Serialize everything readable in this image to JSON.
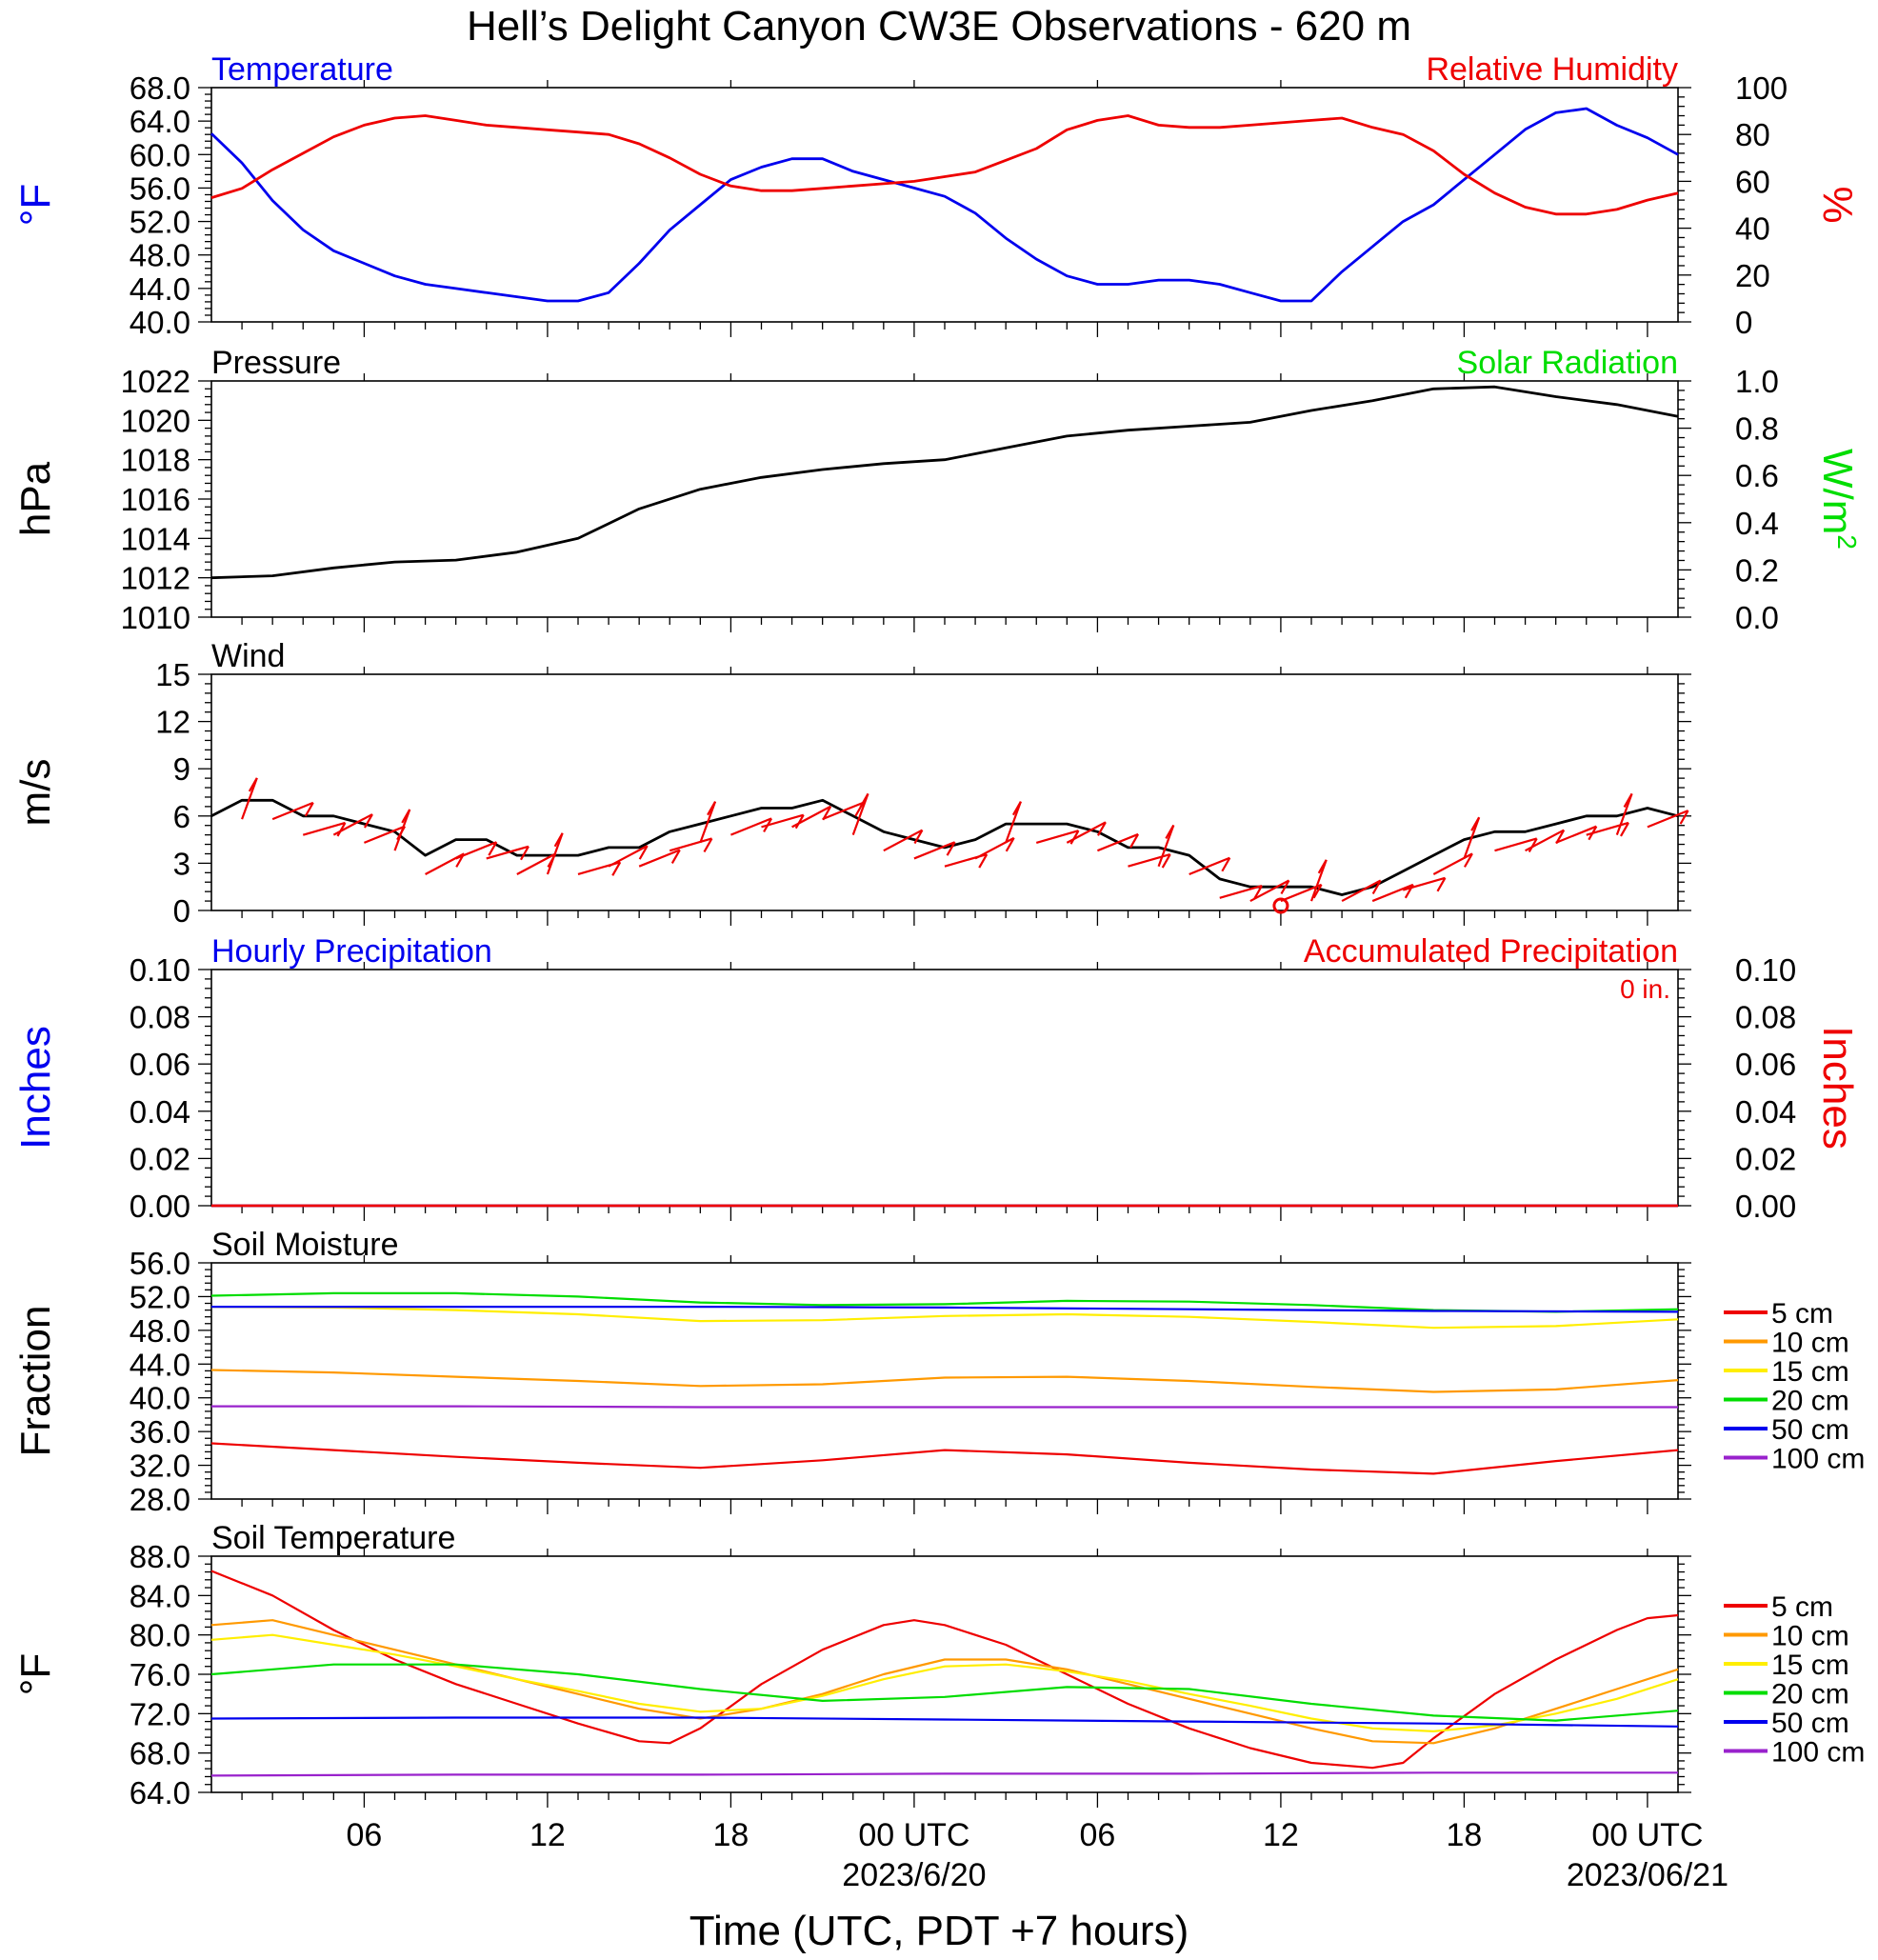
{
  "title": "Hell’s Delight Canyon CW3E Observations - 620 m",
  "xaxis": {
    "label": "Time (UTC, PDT +7 hours)",
    "ticks": [
      {
        "hour": 6,
        "label": "06"
      },
      {
        "hour": 12,
        "label": "12"
      },
      {
        "hour": 18,
        "label": "18"
      },
      {
        "hour": 24,
        "label": "00 UTC"
      },
      {
        "hour": 30,
        "label": "06"
      },
      {
        "hour": 36,
        "label": "12"
      },
      {
        "hour": 42,
        "label": "18"
      },
      {
        "hour": 48,
        "label": "00 UTC"
      }
    ],
    "dates": [
      {
        "hour": 24,
        "label": "2023/6/20"
      },
      {
        "hour": 48,
        "label": "2023/06/21"
      }
    ],
    "hour_range": [
      1,
      49
    ]
  },
  "colors": {
    "blue": "#0000ee",
    "red": "#ee0000",
    "green": "#00dd00",
    "orange": "#ff9900",
    "yellow": "#ffee00",
    "purple": "#9922cc",
    "black": "#000000"
  },
  "chart_data": [
    {
      "id": "temp_rh",
      "type": "line",
      "title_left": "Temperature",
      "title_right": "Relative Humidity",
      "ylabel_left": "°F",
      "ylabel_right": "%",
      "ylim_left": [
        40,
        68
      ],
      "ylim_right": [
        0,
        100
      ],
      "yticks_left": [
        "40.0",
        "44.0",
        "48.0",
        "52.0",
        "56.0",
        "60.0",
        "64.0",
        "68.0"
      ],
      "yticks_right": [
        "0",
        "20",
        "40",
        "60",
        "80",
        "100"
      ],
      "series": [
        {
          "name": "Temperature",
          "axis": "left",
          "color": "blue",
          "x": [
            1,
            2,
            3,
            4,
            5,
            6,
            7,
            8,
            9,
            10,
            11,
            12,
            13,
            14,
            15,
            16,
            17,
            18,
            19,
            20,
            21,
            22,
            23,
            24,
            25,
            26,
            27,
            28,
            29,
            30,
            31,
            32,
            33,
            34,
            35,
            36,
            37,
            38,
            39,
            40,
            41,
            42,
            43,
            44,
            45,
            46,
            47,
            48,
            49
          ],
          "y": [
            62.5,
            59,
            54.5,
            51,
            48.5,
            47,
            45.5,
            44.5,
            44,
            43.5,
            43,
            42.5,
            42.5,
            43.5,
            47,
            51,
            54,
            57,
            58.5,
            59.5,
            59.5,
            58,
            57,
            56,
            55,
            53,
            50,
            47.5,
            45.5,
            44.5,
            44.5,
            45,
            45,
            44.5,
            43.5,
            42.5,
            42.5,
            46,
            49,
            52,
            54,
            57,
            60,
            63,
            65,
            65.5,
            63.5,
            62,
            60
          ]
        },
        {
          "name": "Relative Humidity",
          "axis": "right",
          "color": "red",
          "x": [
            1,
            2,
            3,
            4,
            5,
            6,
            7,
            8,
            9,
            10,
            11,
            12,
            13,
            14,
            15,
            16,
            17,
            18,
            19,
            20,
            21,
            22,
            23,
            24,
            25,
            26,
            27,
            28,
            29,
            30,
            31,
            32,
            33,
            34,
            35,
            36,
            37,
            38,
            39,
            40,
            41,
            42,
            43,
            44,
            45,
            46,
            47,
            48,
            49
          ],
          "y": [
            53,
            57,
            65,
            72,
            79,
            84,
            87,
            88,
            86,
            84,
            83,
            82,
            81,
            80,
            76,
            70,
            63,
            58,
            56,
            56,
            57,
            58,
            59,
            60,
            62,
            64,
            69,
            74,
            82,
            86,
            88,
            84,
            83,
            83,
            84,
            85,
            86,
            87,
            83,
            80,
            73,
            63,
            55,
            49,
            46,
            46,
            48,
            52,
            55
          ]
        }
      ]
    },
    {
      "id": "pressure",
      "type": "line",
      "title_left": "Pressure",
      "title_right": "Solar Radiation",
      "ylabel_left": "hPa",
      "ylabel_right": "W/m",
      "ylabel_right_sup": "2",
      "ylim_left": [
        1010,
        1022
      ],
      "ylim_right": [
        0,
        1
      ],
      "yticks_left": [
        "1010",
        "1012",
        "1014",
        "1016",
        "1018",
        "1020",
        "1022"
      ],
      "yticks_right": [
        "0.0",
        "0.2",
        "0.4",
        "0.6",
        "0.8",
        "1.0"
      ],
      "series": [
        {
          "name": "Pressure",
          "axis": "left",
          "color": "black",
          "x": [
            1,
            3,
            5,
            7,
            9,
            11,
            13,
            15,
            17,
            19,
            21,
            23,
            25,
            27,
            29,
            31,
            33,
            35,
            37,
            39,
            41,
            43,
            45,
            47,
            49
          ],
          "y": [
            1012.0,
            1012.1,
            1012.5,
            1012.8,
            1012.9,
            1013.3,
            1014.0,
            1015.5,
            1016.5,
            1017.1,
            1017.5,
            1017.8,
            1018.0,
            1018.6,
            1019.2,
            1019.5,
            1019.7,
            1019.9,
            1020.5,
            1021.0,
            1021.6,
            1021.7,
            1021.2,
            1020.8,
            1020.2
          ]
        }
      ]
    },
    {
      "id": "wind",
      "type": "line",
      "title_left": "Wind",
      "ylabel_left": "m/s",
      "ylim_left": [
        0,
        15
      ],
      "yticks_left": [
        "0",
        "3",
        "6",
        "9",
        "12",
        "15"
      ],
      "series": [
        {
          "name": "Wind",
          "axis": "left",
          "color": "black",
          "x": [
            1,
            2,
            3,
            4,
            5,
            6,
            7,
            8,
            9,
            10,
            11,
            12,
            13,
            14,
            15,
            16,
            17,
            18,
            19,
            20,
            21,
            22,
            23,
            24,
            25,
            26,
            27,
            28,
            29,
            30,
            31,
            32,
            33,
            34,
            35,
            36,
            37,
            38,
            39,
            40,
            41,
            42,
            43,
            44,
            45,
            46,
            47,
            48,
            49
          ],
          "y": [
            6,
            7,
            7,
            6,
            6,
            5.5,
            5,
            3.5,
            4.5,
            4.5,
            3.5,
            3.5,
            3.5,
            4,
            4,
            5,
            5.5,
            6,
            6.5,
            6.5,
            7,
            6,
            5,
            4.5,
            4,
            4.5,
            5.5,
            5.5,
            5.5,
            5,
            4,
            4,
            3.5,
            2,
            1.5,
            1.5,
            1.5,
            1,
            1.5,
            2.5,
            3.5,
            4.5,
            5,
            5,
            5.5,
            6,
            6,
            6.5,
            6
          ]
        }
      ],
      "barb_hours": [
        2,
        3,
        4,
        5,
        6,
        7,
        8,
        9,
        10,
        11,
        12,
        13,
        14,
        15,
        16,
        17,
        18,
        19,
        20,
        21,
        22,
        23,
        24,
        25,
        26,
        27,
        28,
        29,
        30,
        31,
        32,
        33,
        34,
        35,
        36,
        37,
        38,
        39,
        40,
        41,
        42,
        43,
        44,
        45,
        46,
        47,
        48
      ],
      "calm_marker_hour": 36
    },
    {
      "id": "precip",
      "type": "line",
      "title_left": "Hourly Precipitation",
      "title_right": "Accumulated Precipitation",
      "accum_text": "0 in.",
      "ylabel_left": "Inches",
      "ylabel_right": "Inches",
      "ylim_left": [
        0,
        0.1
      ],
      "ylim_right": [
        0,
        0.1
      ],
      "yticks_left": [
        "0.00",
        "0.02",
        "0.04",
        "0.06",
        "0.08",
        "0.10"
      ],
      "yticks_right": [
        "0.00",
        "0.02",
        "0.04",
        "0.06",
        "0.08",
        "0.10"
      ],
      "series": [
        {
          "name": "Hourly Precipitation",
          "axis": "left",
          "color": "blue",
          "x": [
            1,
            49
          ],
          "y": [
            0,
            0
          ]
        },
        {
          "name": "Accumulated Precipitation",
          "axis": "right",
          "color": "red",
          "x": [
            1,
            49
          ],
          "y": [
            0,
            0
          ]
        }
      ]
    },
    {
      "id": "soil_moisture",
      "type": "line",
      "title_left": "Soil Moisture",
      "ylabel_left": "Fraction",
      "ylim_left": [
        28,
        56
      ],
      "yticks_left": [
        "28.0",
        "32.0",
        "36.0",
        "40.0",
        "44.0",
        "48.0",
        "52.0",
        "56.0"
      ],
      "legend": [
        "5 cm",
        "10 cm",
        "15 cm",
        "20 cm",
        "50 cm",
        "100 cm"
      ],
      "series": [
        {
          "name": "5 cm",
          "axis": "left",
          "color": "red",
          "x": [
            1,
            5,
            9,
            13,
            17,
            21,
            25,
            29,
            33,
            37,
            41,
            45,
            49
          ],
          "y": [
            34.6,
            33.8,
            33,
            32.3,
            31.7,
            32.6,
            33.8,
            33.3,
            32.3,
            31.5,
            31,
            32.5,
            33.8
          ]
        },
        {
          "name": "10 cm",
          "axis": "left",
          "color": "orange",
          "x": [
            1,
            5,
            9,
            13,
            17,
            21,
            25,
            29,
            33,
            37,
            41,
            45,
            49
          ],
          "y": [
            43.3,
            43,
            42.5,
            42,
            41.4,
            41.6,
            42.4,
            42.5,
            42.0,
            41.3,
            40.7,
            41,
            42.1
          ]
        },
        {
          "name": "15 cm",
          "axis": "left",
          "color": "yellow",
          "x": [
            1,
            5,
            9,
            13,
            17,
            21,
            25,
            29,
            33,
            37,
            41,
            45,
            49
          ],
          "y": [
            50.8,
            50.7,
            50.4,
            49.9,
            49.1,
            49.2,
            49.7,
            49.9,
            49.6,
            49.0,
            48.3,
            48.5,
            49.3
          ]
        },
        {
          "name": "20 cm",
          "axis": "left",
          "color": "green",
          "x": [
            1,
            5,
            9,
            13,
            17,
            21,
            25,
            29,
            33,
            37,
            41,
            45,
            49
          ],
          "y": [
            52.1,
            52.4,
            52.4,
            52.0,
            51.3,
            51.0,
            51.1,
            51.5,
            51.4,
            51.0,
            50.4,
            50.2,
            50.5
          ]
        },
        {
          "name": "50 cm",
          "axis": "left",
          "color": "blue",
          "x": [
            1,
            9,
            17,
            25,
            33,
            41,
            49
          ],
          "y": [
            50.8,
            50.8,
            50.8,
            50.7,
            50.5,
            50.3,
            50.2
          ]
        },
        {
          "name": "100 cm",
          "axis": "left",
          "color": "purple",
          "x": [
            1,
            9,
            17,
            25,
            33,
            41,
            49
          ],
          "y": [
            39,
            39,
            38.9,
            38.9,
            38.9,
            38.9,
            38.9
          ]
        }
      ]
    },
    {
      "id": "soil_temperature",
      "type": "line",
      "title_left": "Soil Temperature",
      "ylabel_left": "°F",
      "ylim_left": [
        64,
        88
      ],
      "yticks_left": [
        "64.0",
        "68.0",
        "72.0",
        "76.0",
        "80.0",
        "84.0",
        "88.0"
      ],
      "legend": [
        "5 cm",
        "10 cm",
        "15 cm",
        "20 cm",
        "50 cm",
        "100 cm"
      ],
      "series": [
        {
          "name": "5 cm",
          "axis": "left",
          "color": "red",
          "x": [
            1,
            3,
            5,
            7,
            9,
            11,
            13,
            15,
            16,
            17,
            19,
            21,
            23,
            24,
            25,
            27,
            29,
            31,
            33,
            35,
            37,
            39,
            40,
            41,
            43,
            45,
            47,
            48,
            49
          ],
          "y": [
            86.5,
            84,
            80.5,
            77.5,
            75,
            73,
            71,
            69.2,
            69,
            70.5,
            75,
            78.5,
            81,
            81.5,
            81,
            79,
            76,
            73,
            70.5,
            68.5,
            67,
            66.5,
            67,
            69.5,
            74,
            77.5,
            80.5,
            81.7,
            82
          ]
        },
        {
          "name": "10 cm",
          "axis": "left",
          "color": "orange",
          "x": [
            1,
            3,
            5,
            7,
            9,
            11,
            13,
            15,
            17,
            19,
            21,
            23,
            25,
            27,
            29,
            31,
            33,
            35,
            37,
            39,
            41,
            43,
            45,
            47,
            49
          ],
          "y": [
            81,
            81.5,
            80,
            78.5,
            77,
            75.5,
            74,
            72.5,
            71.5,
            72.5,
            74,
            76,
            77.5,
            77.5,
            76.5,
            75,
            73.5,
            72,
            70.5,
            69.2,
            69,
            70.5,
            72.5,
            74.5,
            76.5
          ]
        },
        {
          "name": "15 cm",
          "axis": "left",
          "color": "yellow",
          "x": [
            1,
            3,
            5,
            7,
            9,
            11,
            13,
            15,
            17,
            19,
            21,
            23,
            25,
            27,
            29,
            31,
            33,
            35,
            37,
            39,
            41,
            43,
            45,
            47,
            49
          ],
          "y": [
            79.5,
            80,
            79,
            78,
            76.8,
            75.5,
            74.3,
            73,
            72.2,
            72.5,
            73.8,
            75.5,
            76.8,
            77,
            76.3,
            75.3,
            74,
            72.8,
            71.5,
            70.5,
            70.2,
            70.8,
            72,
            73.5,
            75.5
          ]
        },
        {
          "name": "20 cm",
          "axis": "left",
          "color": "green",
          "x": [
            1,
            5,
            9,
            13,
            17,
            21,
            25,
            29,
            33,
            37,
            41,
            45,
            49
          ],
          "y": [
            76,
            77,
            77,
            76,
            74.5,
            73.3,
            73.7,
            74.7,
            74.5,
            73,
            71.8,
            71.3,
            72.3
          ]
        },
        {
          "name": "50 cm",
          "axis": "left",
          "color": "blue",
          "x": [
            1,
            9,
            17,
            25,
            33,
            41,
            49
          ],
          "y": [
            71.5,
            71.6,
            71.6,
            71.4,
            71.2,
            71.0,
            70.7
          ]
        },
        {
          "name": "100 cm",
          "axis": "left",
          "color": "purple",
          "x": [
            1,
            9,
            17,
            25,
            33,
            41,
            49
          ],
          "y": [
            65.7,
            65.8,
            65.8,
            65.9,
            65.9,
            66.0,
            66.0
          ]
        }
      ]
    }
  ]
}
